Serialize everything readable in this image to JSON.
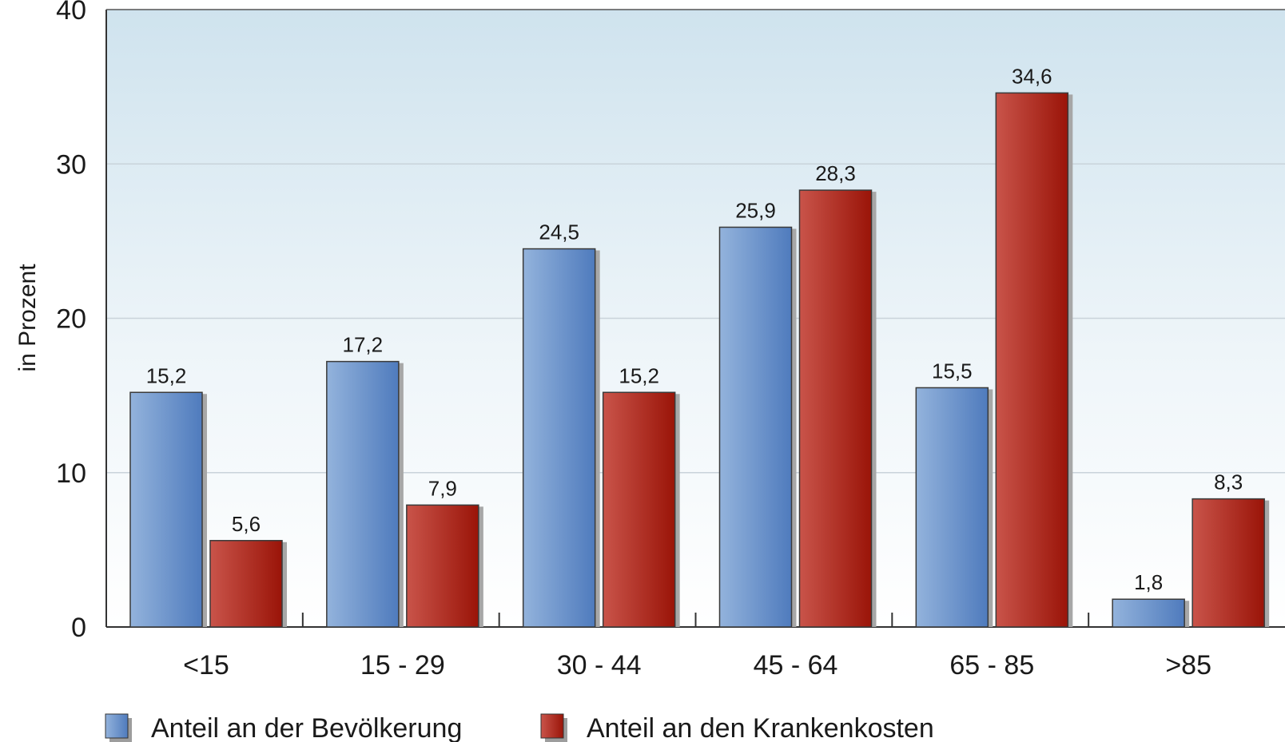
{
  "chart_data": {
    "type": "bar",
    "title": "",
    "xlabel": "",
    "ylabel": "in Prozent",
    "ylim": [
      0,
      40
    ],
    "yticks": [
      "0",
      "10",
      "20",
      "30",
      "40"
    ],
    "grid": true,
    "legend_position": "bottom-left",
    "categories": [
      "<15",
      "15 - 29",
      "30 - 44",
      "45 - 64",
      "65 - 85",
      ">85"
    ],
    "series": [
      {
        "name": "Anteil an der Bevölkerung",
        "color": "#5b86c4",
        "values": [
          15.2,
          17.2,
          24.5,
          25.9,
          15.5,
          1.8
        ],
        "labels": [
          "15,2",
          "17,2",
          "24,5",
          "25,9",
          "15,5",
          "1,8"
        ]
      },
      {
        "name": "Anteil an den Krankenkosten",
        "color": "#b3251c",
        "values": [
          5.6,
          7.9,
          15.2,
          28.3,
          34.6,
          8.3
        ],
        "labels": [
          "5,6",
          "7,9",
          "15,2",
          "28,3",
          "34,6",
          "8,3"
        ]
      }
    ]
  }
}
